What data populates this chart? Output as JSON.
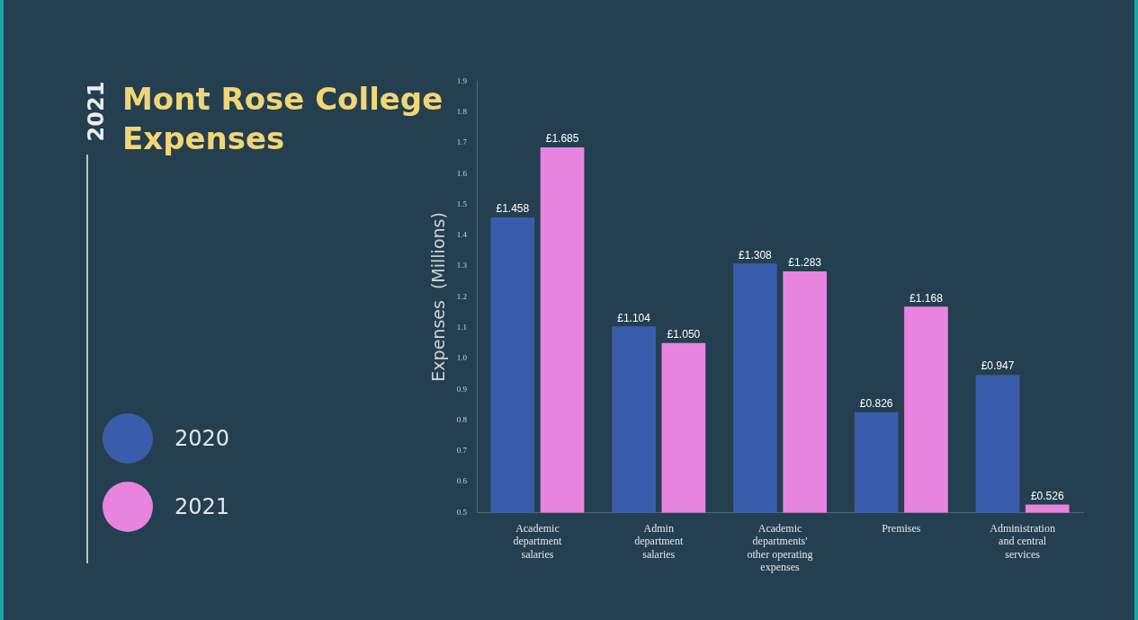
{
  "chart_data": {
    "type": "bar",
    "title": "Mont Rose College Expenses",
    "annotations": [
      "2021"
    ],
    "ylabel": "Expenses  (Millions)",
    "categories": [
      "Academic department salaries",
      "Admin department salaries",
      "Academic departments' other operating expenses",
      "Premises",
      "Administration and central services"
    ],
    "series": [
      {
        "name": "2020",
        "color": "#3a5dab",
        "values": [
          1.458,
          1.104,
          1.308,
          0.826,
          0.947
        ],
        "value_labels": [
          "£1.458",
          "£1.104",
          "£1.308",
          "£0.826",
          "£0.947"
        ]
      },
      {
        "name": "2021",
        "color": "#e884e0",
        "values": [
          1.685,
          1.05,
          1.283,
          1.168,
          0.526
        ],
        "value_labels": [
          "£1.685",
          "£1.050",
          "£1.283",
          "£1.168",
          "£0.526"
        ]
      }
    ],
    "ylim": [
      0.5,
      1.9
    ],
    "yticks": [
      0.5,
      0.6,
      0.7,
      0.8,
      0.9,
      {
        "value": 1,
        "label": "1.0"
      },
      1.1,
      1.2,
      1.3,
      1.4,
      1.5,
      1.6,
      1.7,
      1.8,
      1.9
    ],
    "grid": false,
    "legend": "left"
  }
}
